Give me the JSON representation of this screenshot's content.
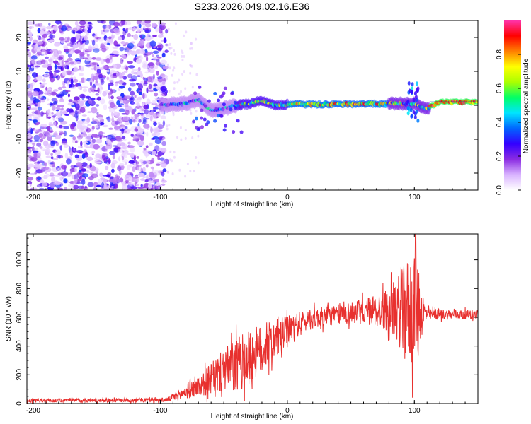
{
  "title": "S233.2026.049.02.16.E36",
  "chart_data": [
    {
      "type": "heatmap",
      "name": "spectrogram",
      "xlabel": "Height of straight line (km)",
      "ylabel": "Frequency (Hz)",
      "xlim": [
        -205,
        150
      ],
      "ylim": [
        -25,
        25
      ],
      "xticks": [
        -200,
        -100,
        0,
        100
      ],
      "yticks": [
        -20,
        -10,
        0,
        10,
        20
      ],
      "colorbar": {
        "label": "Normalized spectral amplitude",
        "range": [
          0.0,
          1.0
        ],
        "ticks": [
          0.0,
          0.2,
          0.4,
          0.6,
          0.8
        ],
        "tick_labels": [
          "0.0",
          "0.2",
          "0.4",
          "0.6",
          "0.8"
        ],
        "colormap": [
          "#ffffff",
          "#d9b3ff",
          "#8a2be2",
          "#3300ff",
          "#0066ff",
          "#00e5ff",
          "#00ff66",
          "#aaff00",
          "#ffff00",
          "#ff8000",
          "#ff0000",
          "#ff33aa"
        ]
      },
      "signal_track": [
        {
          "x": -100,
          "f": 0.0
        },
        {
          "x": -80,
          "f": 0.5
        },
        {
          "x": -70,
          "f": 1.5
        },
        {
          "x": -60,
          "f": -1.5
        },
        {
          "x": -50,
          "f": -1.0
        },
        {
          "x": -40,
          "f": 0.0
        },
        {
          "x": -30,
          "f": 0.5
        },
        {
          "x": -20,
          "f": 1.5
        },
        {
          "x": -10,
          "f": 0.0
        },
        {
          "x": 0,
          "f": 0.3
        },
        {
          "x": 20,
          "f": 0.3
        },
        {
          "x": 40,
          "f": 0.4
        },
        {
          "x": 60,
          "f": 0.4
        },
        {
          "x": 80,
          "f": 0.5
        },
        {
          "x": 100,
          "f": 0.5
        },
        {
          "x": 110,
          "f": -1.0
        },
        {
          "x": 120,
          "f": 1.0
        },
        {
          "x": 150,
          "f": 1.0
        }
      ]
    },
    {
      "type": "line",
      "name": "snr",
      "xlabel": "Height of straight line (km)",
      "ylabel": "SNR (10 * v/v)",
      "xlim": [
        -205,
        150
      ],
      "ylim": [
        0,
        1180
      ],
      "xticks": [
        -200,
        -100,
        0,
        100
      ],
      "yticks": [
        0,
        200,
        400,
        600,
        800,
        1000
      ],
      "color": "#e8302e",
      "envelope": [
        {
          "x": -205,
          "mean": 20,
          "amp": 12
        },
        {
          "x": -95,
          "mean": 25,
          "amp": 15
        },
        {
          "x": -85,
          "mean": 60,
          "amp": 40
        },
        {
          "x": -70,
          "mean": 120,
          "amp": 70
        },
        {
          "x": -60,
          "mean": 170,
          "amp": 110
        },
        {
          "x": -50,
          "mean": 230,
          "amp": 150
        },
        {
          "x": -40,
          "mean": 260,
          "amp": 200
        },
        {
          "x": -30,
          "mean": 320,
          "amp": 190
        },
        {
          "x": -20,
          "mean": 380,
          "amp": 170
        },
        {
          "x": -10,
          "mean": 440,
          "amp": 140
        },
        {
          "x": 0,
          "mean": 500,
          "amp": 110
        },
        {
          "x": 10,
          "mean": 560,
          "amp": 80
        },
        {
          "x": 20,
          "mean": 590,
          "amp": 70
        },
        {
          "x": 40,
          "mean": 620,
          "amp": 70
        },
        {
          "x": 60,
          "mean": 640,
          "amp": 90
        },
        {
          "x": 80,
          "mean": 650,
          "amp": 150
        },
        {
          "x": 90,
          "mean": 650,
          "amp": 280
        },
        {
          "x": 100,
          "mean": 650,
          "amp": 450
        },
        {
          "x": 105,
          "mean": 640,
          "amp": 200
        },
        {
          "x": 110,
          "mean": 620,
          "amp": 40
        },
        {
          "x": 150,
          "mean": 620,
          "amp": 30
        }
      ],
      "peak": {
        "x": 101,
        "y": 1180
      }
    }
  ]
}
